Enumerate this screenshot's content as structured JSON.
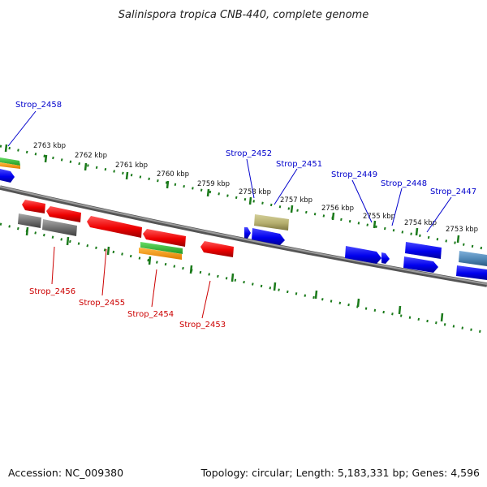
{
  "title": "Salinispora tropica CNB-440, complete genome",
  "footer": {
    "accession": "Accession: NC_009380",
    "summary": "Topology: circular; Length: 5,183,331 bp; Genes: 4,596"
  },
  "kbp_ticks": [
    "2763 kbp",
    "2762 kbp",
    "2761 kbp",
    "2760 kbp",
    "2759 kbp",
    "2758 kbp",
    "2757 kbp",
    "2756 kbp",
    "2755 kbp",
    "2754 kbp",
    "2753 kbp"
  ],
  "gene_labels": {
    "strop_2458": "Strop_2458",
    "strop_2452": "Strop_2452",
    "strop_2451": "Strop_2451",
    "strop_2449": "Strop_2449",
    "strop_2448": "Strop_2448",
    "strop_2447": "Strop_2447",
    "strop_2456": "Strop_2456",
    "strop_2455": "Strop_2455",
    "strop_2454": "Strop_2454",
    "strop_2453": "Strop_2453"
  },
  "colors": {
    "forward_gene": "#0000ee",
    "reverse_gene": "#ee0000",
    "pseudo_gene": "#777777",
    "rna_green": "#33bb33",
    "rna_orange": "#ff9900",
    "olive_feature": "#b5ae6e",
    "steel_feature": "#4f86b5",
    "backbone": "#808080",
    "tick_green": "#1a7a1a"
  }
}
